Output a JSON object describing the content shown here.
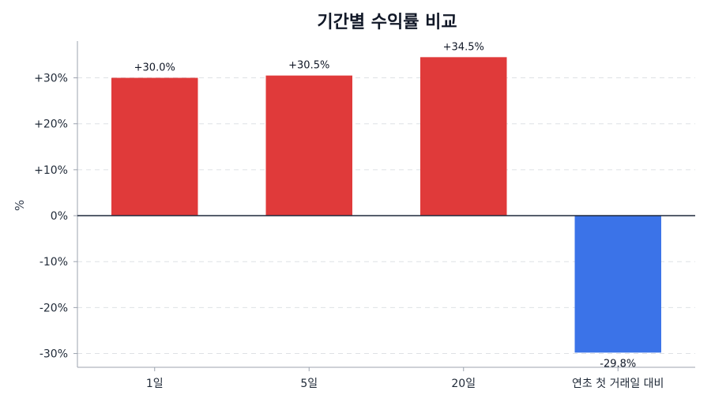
{
  "chart_data": {
    "type": "bar",
    "title": "기간별 수익률 비교",
    "xlabel": "",
    "ylabel": "%",
    "categories": [
      "1일",
      "5일",
      "20일",
      "연초 첫 거래일 대비"
    ],
    "values": [
      30.0,
      30.5,
      34.5,
      -29.8
    ],
    "data_labels": [
      "+30.0%",
      "+30.5%",
      "+34.5%",
      "-29.8%"
    ],
    "ylim": [
      -33,
      38
    ],
    "yticks": [
      -30,
      -20,
      -10,
      0,
      10,
      20,
      30
    ],
    "ytick_labels": [
      "-30%",
      "-20%",
      "-10%",
      "0%",
      "+10%",
      "+20%",
      "+30%"
    ],
    "grid": true,
    "colors": {
      "positive": "#e03a3a",
      "negative": "#3b73e8"
    }
  }
}
